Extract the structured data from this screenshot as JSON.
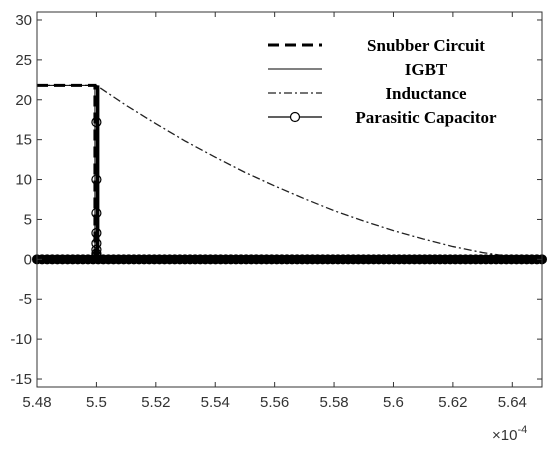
{
  "chart_data": {
    "type": "line",
    "title": "",
    "xlabel": "",
    "ylabel": "",
    "x_exponent": "×10",
    "x_exponent_power": "-4",
    "xlim": [
      5.48,
      5.65
    ],
    "ylim": [
      -16,
      31
    ],
    "xticks": [
      5.48,
      5.5,
      5.52,
      5.54,
      5.56,
      5.58,
      5.6,
      5.62,
      5.64
    ],
    "xtick_labels": [
      "5.48",
      "5.5",
      "5.52",
      "5.54",
      "5.56",
      "5.58",
      "5.6",
      "5.62",
      "5.64"
    ],
    "yticks": [
      30,
      25,
      20,
      15,
      10,
      5,
      0,
      -5,
      -10,
      -15
    ],
    "ytick_labels": [
      "30",
      "25",
      "20",
      "15",
      "10",
      "5",
      "0",
      "-5",
      "-10",
      "-15"
    ],
    "grid": false,
    "legend_position": "top-right",
    "series": [
      {
        "name": "Snubber Circuit",
        "style": "thick-dashed",
        "points": [
          [
            5.48,
            21.8
          ],
          [
            5.4995,
            21.8
          ],
          [
            5.4995,
            0
          ],
          [
            5.5005,
            0
          ],
          [
            5.5005,
            21.8
          ],
          [
            5.5005,
            0
          ]
        ]
      },
      {
        "name": "IGBT",
        "style": "thin-solid",
        "points": [
          [
            5.48,
            21.8
          ],
          [
            5.4995,
            21.8
          ],
          [
            5.4995,
            0
          ],
          [
            5.5,
            0
          ],
          [
            5.5,
            21.8
          ],
          [
            5.5,
            0
          ],
          [
            5.65,
            0
          ]
        ]
      },
      {
        "name": "Inductance",
        "style": "dash-dot",
        "points": [
          [
            5.48,
            21.8
          ],
          [
            5.5,
            21.8
          ],
          [
            5.51,
            19.3
          ],
          [
            5.52,
            17.0
          ],
          [
            5.53,
            14.8
          ],
          [
            5.54,
            12.8
          ],
          [
            5.55,
            10.9
          ],
          [
            5.56,
            9.2
          ],
          [
            5.57,
            7.6
          ],
          [
            5.58,
            6.1
          ],
          [
            5.59,
            4.8
          ],
          [
            5.6,
            3.6
          ],
          [
            5.61,
            2.55
          ],
          [
            5.62,
            1.6
          ],
          [
            5.63,
            0.85
          ],
          [
            5.64,
            0.3
          ],
          [
            5.645,
            0.15
          ],
          [
            5.65,
            0.0
          ]
        ]
      },
      {
        "name": "Parasitic Capacitor",
        "style": "solid-circle-markers",
        "points": [
          [
            5.5,
            17.2
          ],
          [
            5.5,
            10.0
          ],
          [
            5.5,
            5.8
          ],
          [
            5.5,
            3.3
          ],
          [
            5.5,
            2.0
          ],
          [
            5.5,
            1.2
          ],
          [
            5.5,
            0.7
          ],
          [
            5.5,
            0.4
          ]
        ],
        "baseline_markers": {
          "y": 0,
          "x_from": 5.48,
          "x_to": 5.65,
          "count": 100
        }
      }
    ]
  }
}
